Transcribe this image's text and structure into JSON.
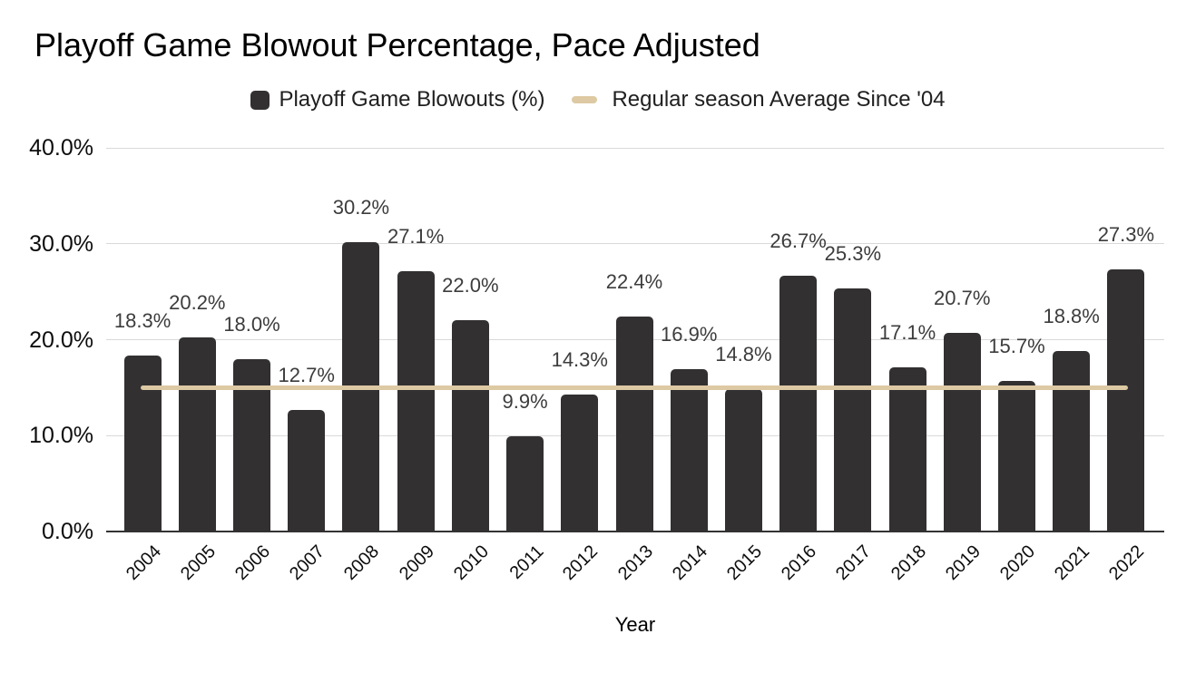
{
  "chart_data": {
    "type": "bar",
    "title": "Playoff Game Blowout Percentage, Pace Adjusted",
    "xlabel": "Year",
    "ylabel": "",
    "categories": [
      "2004",
      "2005",
      "2006",
      "2007",
      "2008",
      "2009",
      "2010",
      "2011",
      "2012",
      "2013",
      "2014",
      "2015",
      "2016",
      "2017",
      "2018",
      "2019",
      "2020",
      "2021",
      "2022"
    ],
    "series": [
      {
        "name": "Playoff Game Blowouts (%)",
        "type": "bar",
        "color": "#323031",
        "values": [
          18.3,
          20.2,
          18.0,
          12.7,
          30.2,
          27.1,
          22.0,
          9.9,
          14.3,
          22.4,
          16.9,
          14.8,
          26.7,
          25.3,
          17.1,
          20.7,
          15.7,
          18.8,
          27.3
        ]
      },
      {
        "name": "Regular season Average Since '04",
        "type": "line",
        "color": "#DDC9A3",
        "value": 15.0
      }
    ],
    "data_label_suffix": "%",
    "ylim": [
      0,
      40
    ],
    "yticks": [
      0,
      10,
      20,
      30,
      40
    ],
    "ytick_labels": [
      "0.0%",
      "10.0%",
      "20.0%",
      "30.0%",
      "40.0%"
    ],
    "grid": true,
    "legend_position": "top",
    "colors": {
      "grid_color": "#D9D9D9",
      "axis_color": "#333333",
      "background": "#FFFFFF"
    }
  }
}
